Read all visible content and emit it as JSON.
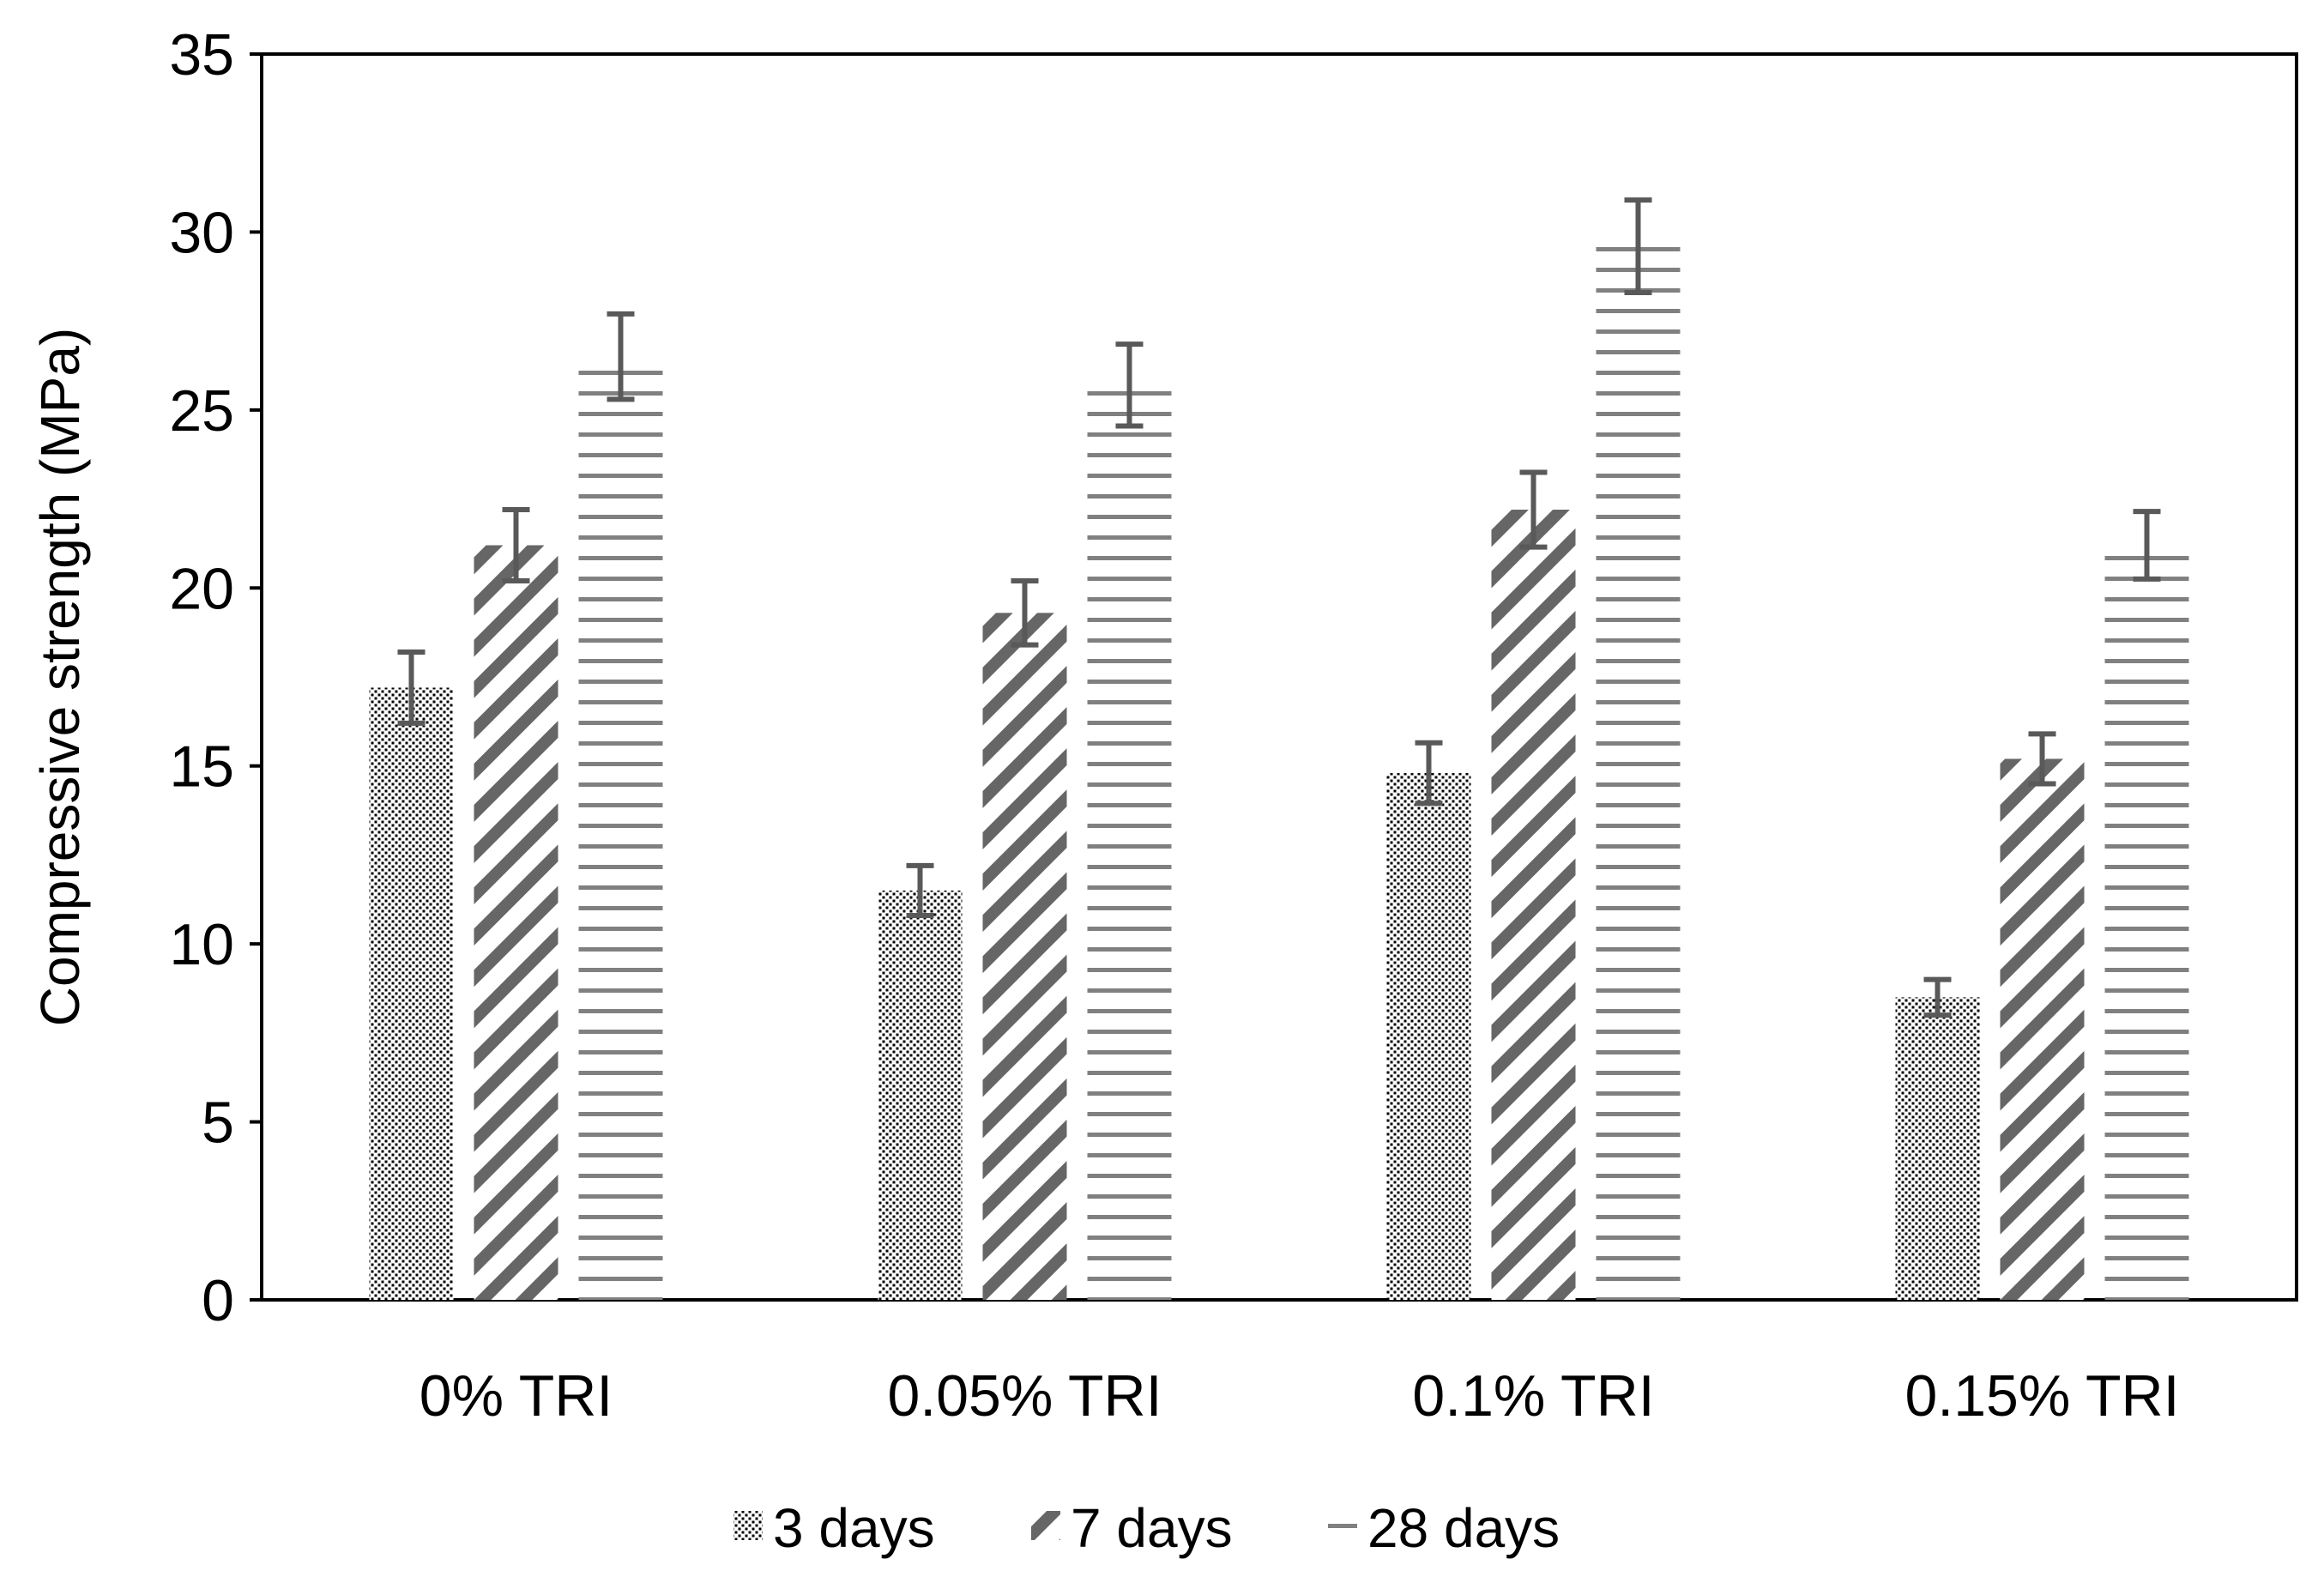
{
  "chart_data": {
    "type": "bar",
    "title": "",
    "xlabel": "",
    "ylabel": "Compressive strength (MPa)",
    "ylim": [
      0,
      35
    ],
    "yticks": [
      0,
      5,
      10,
      15,
      20,
      25,
      30,
      35
    ],
    "grid": false,
    "legend_position": "bottom",
    "categories": [
      "0% TRI",
      "0.05% TRI",
      "0.1% TRI",
      "0.15% TRI"
    ],
    "series": [
      {
        "name": "3 days",
        "pattern": "dots",
        "values": [
          17.2,
          11.5,
          14.8,
          8.5
        ],
        "errors": [
          1.0,
          0.7,
          0.85,
          0.5
        ]
      },
      {
        "name": "7 days",
        "pattern": "diagonal",
        "values": [
          21.2,
          19.3,
          22.2,
          15.2
        ],
        "errors": [
          1.0,
          0.9,
          1.05,
          0.7
        ]
      },
      {
        "name": "28 days",
        "pattern": "horizontal",
        "values": [
          26.5,
          25.7,
          29.6,
          21.2
        ],
        "errors": [
          1.2,
          1.15,
          1.3,
          0.95
        ]
      }
    ],
    "colors": {
      "bar": "#7f7f7f",
      "axis": "#000000",
      "error_bar": "#595959"
    }
  }
}
